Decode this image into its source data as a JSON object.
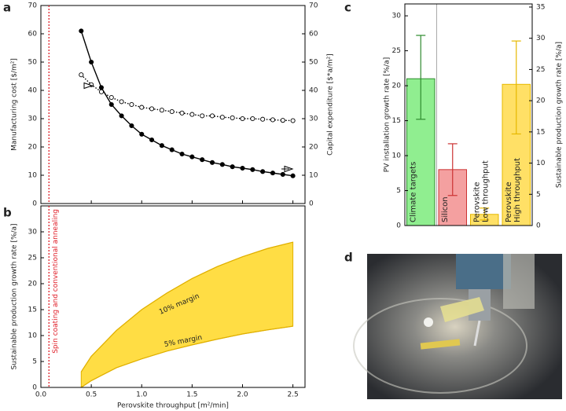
{
  "chart_data": [
    {
      "type": "line",
      "label": "a",
      "ylabel": "Manufacturing cost [$/m²]",
      "y2label": "Capital expenditure [$*a/m²]",
      "x": [
        0.4,
        0.5,
        0.6,
        0.7,
        0.8,
        0.9,
        1.0,
        1.1,
        1.2,
        1.3,
        1.4,
        1.5,
        1.6,
        1.7,
        1.8,
        1.9,
        2.0,
        2.1,
        2.2,
        2.3,
        2.4,
        2.5
      ],
      "series": [
        {
          "color": "#000000",
          "style": "solid",
          "marker": "filled",
          "values": [
            61,
            50,
            41,
            35,
            31,
            27.5,
            24.5,
            22.5,
            20.5,
            19,
            17.5,
            16.5,
            15.5,
            14.5,
            13.8,
            13,
            12.5,
            12,
            11.3,
            10.8,
            10.3,
            9.8
          ]
        },
        {
          "color": "#000000",
          "style": "dotted",
          "marker": "open",
          "axis": "y2",
          "values": [
            45.5,
            42,
            39.5,
            37.5,
            36,
            35,
            34,
            33.5,
            33,
            32.5,
            32,
            31.5,
            31,
            31,
            30.5,
            30.3,
            30,
            30,
            29.8,
            29.6,
            29.4,
            29.3
          ]
        }
      ],
      "xlim": [
        0,
        2.62
      ],
      "xticks": [
        0,
        0.5,
        1,
        1.5,
        2,
        2.5
      ],
      "ylim": [
        0,
        70
      ],
      "yticks": [
        0,
        10,
        20,
        30,
        40,
        50,
        60,
        70
      ],
      "y2lim": [
        0,
        70
      ],
      "y2ticks": [
        0,
        10,
        20,
        30,
        40,
        50,
        60,
        70
      ],
      "vline": {
        "x": 0.08,
        "color": "#e0202a"
      }
    },
    {
      "type": "area",
      "label": "b",
      "ylabel": "Sustainable production growth rate [%/a]",
      "xlabel": "Perovskite throughput [m²/min]",
      "x": [
        0.4,
        0.5,
        0.75,
        1.0,
        1.25,
        1.5,
        1.75,
        2.0,
        2.25,
        2.5
      ],
      "upper": [
        3,
        6,
        11,
        15,
        18.2,
        21,
        23.3,
        25.2,
        26.8,
        28
      ],
      "lower": [
        0,
        1.3,
        3.8,
        5.5,
        7,
        8.2,
        9.3,
        10.3,
        11.1,
        11.8
      ],
      "color": "#ffdd44",
      "edge_color": "#e0b000",
      "annotations": [
        "10% margin",
        "5% margin"
      ],
      "xlim": [
        0,
        2.62
      ],
      "xticks": [
        {
          "value": 0,
          "label": "0.0"
        },
        0.5,
        {
          "value": 1,
          "label": "1.0"
        },
        1.5,
        {
          "value": 2,
          "label": "2.0"
        },
        2.5
      ],
      "ylim": [
        0,
        35
      ],
      "yticks": [
        0,
        5,
        10,
        15,
        20,
        25,
        30
      ],
      "vline": {
        "x": 0.08,
        "color": "#e0202a",
        "text": "Spin coating and conventional annealing"
      }
    },
    {
      "type": "bar",
      "label": "c",
      "ylabel": "PV installation growth rate [%/a]",
      "y2label": "Sustainable production growth rate [%/a]",
      "categories": [
        [
          "Climate targets"
        ],
        [
          "Silicon"
        ],
        [
          "Perovskite",
          "Low throughput"
        ],
        [
          "Perovskite",
          "High throughput"
        ]
      ],
      "values": [
        21,
        8,
        1.6,
        20.2
      ],
      "error_lower": [
        5.8,
        3.7,
        0.8,
        7.1
      ],
      "error_upper": [
        6.2,
        3.7,
        0.9,
        6.2
      ],
      "colors": [
        "#90ee90",
        "#f4a0a0",
        "#ffe066",
        "#ffe066"
      ],
      "edge_colors": [
        "#2e8b2e",
        "#cc3333",
        "#e6b800",
        "#e6b800"
      ],
      "ylim": [
        0,
        31.7
      ],
      "yticks": [
        0,
        5,
        10,
        15,
        20,
        25,
        30
      ],
      "y2lim": [
        0,
        35.5
      ],
      "y2ticks": [
        0,
        5,
        10,
        15,
        20,
        25,
        30,
        35
      ]
    },
    {
      "type": "image",
      "label": "d"
    }
  ]
}
